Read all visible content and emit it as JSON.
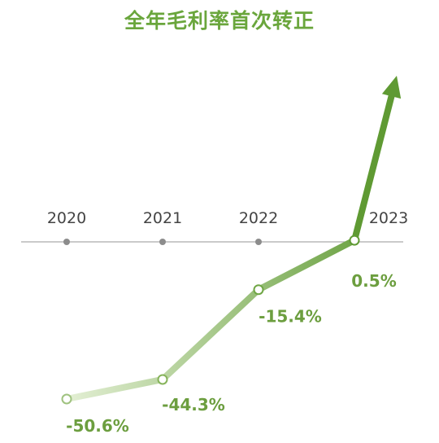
{
  "chart_data": {
    "type": "line",
    "title": "全年毛利率首次转正",
    "categories": [
      "2020",
      "2021",
      "2022",
      "2023"
    ],
    "values": [
      -50.6,
      -44.3,
      -15.4,
      0.5
    ],
    "value_labels": [
      "-50.6%",
      "-44.3%",
      "-15.4%",
      "0.5%"
    ],
    "unit": "%",
    "xlabel": "",
    "ylabel": "",
    "grid": false,
    "trend_arrow": true,
    "colors": {
      "line_start": "#e3efd4",
      "line_end": "#5f9a33",
      "title": "#6aa63c",
      "axis": "#aaaaaa",
      "tick_dot": "#8c8c8c",
      "value_text": "#6c9e3f"
    }
  }
}
